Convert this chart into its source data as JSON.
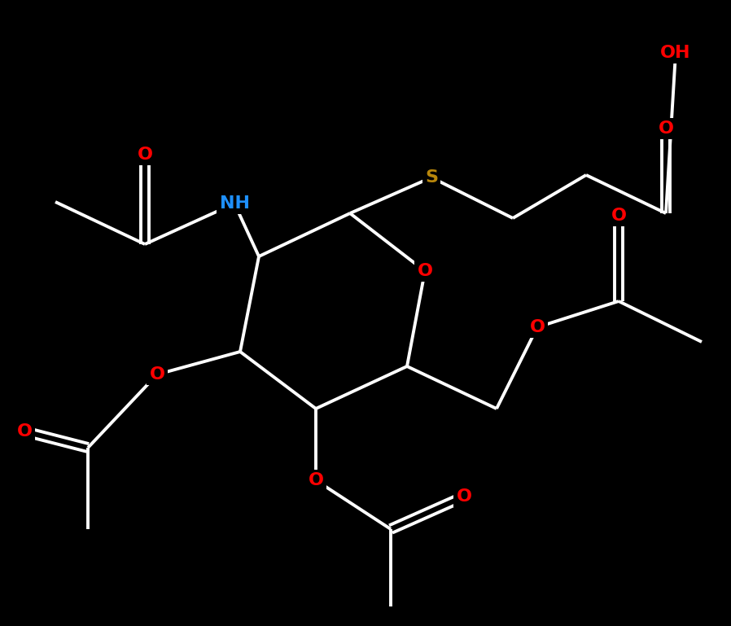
{
  "background_color": "#000000",
  "bond_color": "#ffffff",
  "bond_width": 2.8,
  "atom_colors": {
    "O": "#ff0000",
    "N": "#1e90ff",
    "S": "#b8860b",
    "C": "#ffffff",
    "H": "#ffffff"
  },
  "figsize": [
    8.98,
    7.69
  ],
  "dpi": 100,
  "font_size": 16
}
